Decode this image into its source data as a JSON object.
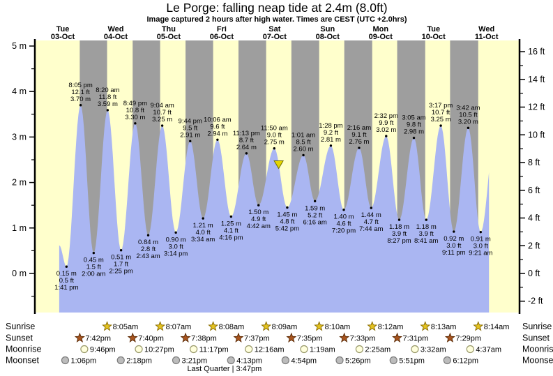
{
  "chart_data": {
    "type": "area",
    "title": "Le Porge: falling  neap tide at 2.4m (8.0ft)",
    "subtitle": "Image captured 2 hours after high water. Times are CEST (UTC +2.0hrs)",
    "legend_position": "none",
    "grid": false,
    "x_axis": {
      "unit": "days",
      "labels_position": "top"
    },
    "y_axis_left": {
      "unit": "m",
      "ticks": [
        0,
        1,
        2,
        3,
        4,
        5
      ],
      "tick_suffix": " m",
      "minor_step": 0.5
    },
    "y_axis_right": {
      "unit": "ft",
      "ticks": [
        -2,
        0,
        2,
        4,
        6,
        8,
        10,
        12,
        14,
        16
      ],
      "tick_suffix": " ft",
      "minor_step": 1
    },
    "ylim_m": [
      -0.86,
      5.12
    ],
    "days": [
      {
        "name": "Tue",
        "date": "03-Oct",
        "day": 3
      },
      {
        "name": "Wed",
        "date": "04-Oct",
        "day": 4
      },
      {
        "name": "Thu",
        "date": "05-Oct",
        "day": 5
      },
      {
        "name": "Fri",
        "date": "06-Oct",
        "day": 6
      },
      {
        "name": "Sat",
        "date": "07-Oct",
        "day": 7
      },
      {
        "name": "Sun",
        "date": "08-Oct",
        "day": 8
      },
      {
        "name": "Mon",
        "date": "09-Oct",
        "day": 9
      },
      {
        "name": "Tue",
        "date": "10-Oct",
        "day": 10
      },
      {
        "name": "Wed",
        "date": "11-Oct",
        "day": 11
      }
    ],
    "tide_events": [
      {
        "day": 3,
        "type": "low",
        "time": "1:41 pm",
        "t": 13.683,
        "m": 0.15,
        "m_label": "0.15 m",
        "ft_label": "0.5 ft"
      },
      {
        "day": 3,
        "type": "high",
        "time": "8:05 pm",
        "t": 20.083,
        "m": 3.7,
        "m_label": "3.70 m",
        "ft_label": "12.1 ft"
      },
      {
        "day": 4,
        "type": "low",
        "time": "2:00 am",
        "t": 2.0,
        "m": 0.45,
        "m_label": "0.45 m",
        "ft_label": "1.5 ft"
      },
      {
        "day": 4,
        "type": "high",
        "time": "8:20 am",
        "t": 8.333,
        "m": 3.59,
        "m_label": "3.59 m",
        "ft_label": "11.8 ft"
      },
      {
        "day": 4,
        "type": "low",
        "time": "2:25 pm",
        "t": 14.417,
        "m": 0.51,
        "m_label": "0.51 m",
        "ft_label": "1.7 ft"
      },
      {
        "day": 4,
        "type": "high",
        "time": "8:49 pm",
        "t": 20.817,
        "m": 3.3,
        "m_label": "3.30 m",
        "ft_label": "10.8 ft"
      },
      {
        "day": 5,
        "type": "low",
        "time": "2:43 am",
        "t": 2.717,
        "m": 0.84,
        "m_label": "0.84 m",
        "ft_label": "2.8 ft"
      },
      {
        "day": 5,
        "type": "high",
        "time": "9:04 am",
        "t": 9.067,
        "m": 3.25,
        "m_label": "3.25 m",
        "ft_label": "10.7 ft"
      },
      {
        "day": 5,
        "type": "low",
        "time": "3:14 pm",
        "t": 15.233,
        "m": 0.9,
        "m_label": "0.90 m",
        "ft_label": "3.0 ft"
      },
      {
        "day": 5,
        "type": "high",
        "time": "9:44 pm",
        "t": 21.733,
        "m": 2.91,
        "m_label": "2.91 m",
        "ft_label": "9.5 ft"
      },
      {
        "day": 6,
        "type": "low",
        "time": "3:34 am",
        "t": 3.567,
        "m": 1.21,
        "m_label": "1.21 m",
        "ft_label": "4.0 ft"
      },
      {
        "day": 6,
        "type": "high",
        "time": "10:06 am",
        "t": 10.1,
        "m": 2.94,
        "m_label": "2.94 m",
        "ft_label": "9.6 ft"
      },
      {
        "day": 6,
        "type": "low",
        "time": "4:16 pm",
        "t": 16.267,
        "m": 1.25,
        "m_label": "1.25 m",
        "ft_label": "4.1 ft"
      },
      {
        "day": 6,
        "type": "high",
        "time": "11:13 pm",
        "t": 23.217,
        "m": 2.64,
        "m_label": "2.64 m",
        "ft_label": "8.7 ft"
      },
      {
        "day": 7,
        "type": "low",
        "time": "4:42 am",
        "t": 4.7,
        "m": 1.5,
        "m_label": "1.50 m",
        "ft_label": "4.9 ft"
      },
      {
        "day": 7,
        "type": "high",
        "time": "11:50 am",
        "t": 11.833,
        "m": 2.75,
        "m_label": "2.75 m",
        "ft_label": "9.0 ft"
      },
      {
        "day": 7,
        "type": "low",
        "time": "5:42 pm",
        "t": 17.7,
        "m": 1.45,
        "m_label": "1.45 m",
        "ft_label": "4.8 ft"
      },
      {
        "day": 8,
        "type": "high",
        "time": "1:01 am",
        "t": 1.017,
        "m": 2.6,
        "m_label": "2.60 m",
        "ft_label": "8.5 ft"
      },
      {
        "day": 8,
        "type": "low",
        "time": "6:16 am",
        "t": 6.267,
        "m": 1.59,
        "m_label": "1.59 m",
        "ft_label": "5.2 ft"
      },
      {
        "day": 8,
        "type": "high",
        "time": "1:28 pm",
        "t": 13.467,
        "m": 2.81,
        "m_label": "2.81 m",
        "ft_label": "9.2 ft"
      },
      {
        "day": 8,
        "type": "low",
        "time": "7:20 pm",
        "t": 19.333,
        "m": 1.4,
        "m_label": "1.40 m",
        "ft_label": "4.6 ft"
      },
      {
        "day": 9,
        "type": "high",
        "time": "2:16 am",
        "t": 2.267,
        "m": 2.76,
        "m_label": "2.76 m",
        "ft_label": "9.1 ft"
      },
      {
        "day": 9,
        "type": "low",
        "time": "7:44 am",
        "t": 7.733,
        "m": 1.44,
        "m_label": "1.44 m",
        "ft_label": "4.7 ft"
      },
      {
        "day": 9,
        "type": "high",
        "time": "2:32 pm",
        "t": 14.533,
        "m": 3.02,
        "m_label": "3.02 m",
        "ft_label": "9.9 ft"
      },
      {
        "day": 9,
        "type": "low",
        "time": "8:27 pm",
        "t": 20.45,
        "m": 1.18,
        "m_label": "1.18 m",
        "ft_label": "3.9 ft"
      },
      {
        "day": 10,
        "type": "high",
        "time": "3:05 am",
        "t": 3.083,
        "m": 2.98,
        "m_label": "2.98 m",
        "ft_label": "9.8 ft"
      },
      {
        "day": 10,
        "type": "low",
        "time": "8:41 am",
        "t": 8.683,
        "m": 1.18,
        "m_label": "1.18 m",
        "ft_label": "3.9 ft"
      },
      {
        "day": 10,
        "type": "high",
        "time": "3:17 pm",
        "t": 15.283,
        "m": 3.25,
        "m_label": "3.25 m",
        "ft_label": "10.7 ft"
      },
      {
        "day": 10,
        "type": "low",
        "time": "9:11 pm",
        "t": 21.183,
        "m": 0.92,
        "m_label": "0.92 m",
        "ft_label": "3.0 ft"
      },
      {
        "day": 11,
        "type": "high",
        "time": "3:42 am",
        "t": 3.7,
        "m": 3.2,
        "m_label": "3.20 m",
        "ft_label": "10.5 ft"
      },
      {
        "day": 11,
        "type": "low",
        "time": "9:21 am",
        "t": 9.35,
        "m": 0.91,
        "m_label": "0.91 m",
        "ft_label": "3.0 ft"
      }
    ],
    "curve_edge_start": {
      "day": 3,
      "t": 10.4,
      "m": 0.62
    },
    "curve_edge_end": {
      "day": 11,
      "t": 16.2,
      "m": 3.2,
      "cut_day": 11,
      "cut_t": 13.1
    },
    "capture_marker": {
      "day": 7,
      "t": 13.83,
      "m": 2.4
    },
    "astro": {
      "row_labels": [
        "Sunrise",
        "Sunset",
        "Moonrise",
        "Moonset"
      ],
      "sunrise": [
        {
          "day": 4,
          "time": "8:05am",
          "t": 8.083
        },
        {
          "day": 5,
          "time": "8:07am",
          "t": 8.117
        },
        {
          "day": 6,
          "time": "8:08am",
          "t": 8.133
        },
        {
          "day": 7,
          "time": "8:09am",
          "t": 8.15
        },
        {
          "day": 8,
          "time": "8:10am",
          "t": 8.167
        },
        {
          "day": 9,
          "time": "8:12am",
          "t": 8.2
        },
        {
          "day": 10,
          "time": "8:13am",
          "t": 8.217
        },
        {
          "day": 11,
          "time": "8:14am",
          "t": 8.233
        }
      ],
      "sunset": [
        {
          "day": 3,
          "time": "7:42pm",
          "t": 19.7
        },
        {
          "day": 4,
          "time": "7:40pm",
          "t": 19.667
        },
        {
          "day": 5,
          "time": "7:38pm",
          "t": 19.633
        },
        {
          "day": 6,
          "time": "7:37pm",
          "t": 19.617
        },
        {
          "day": 7,
          "time": "7:35pm",
          "t": 19.583
        },
        {
          "day": 8,
          "time": "7:33pm",
          "t": 19.55
        },
        {
          "day": 9,
          "time": "7:31pm",
          "t": 19.517
        },
        {
          "day": 10,
          "time": "7:29pm",
          "t": 19.483
        }
      ],
      "moonrise": [
        {
          "day": 3,
          "time": "9:46pm",
          "t": 21.767
        },
        {
          "day": 4,
          "time": "10:27pm",
          "t": 22.45
        },
        {
          "day": 5,
          "time": "11:17pm",
          "t": 23.283
        },
        {
          "day": 7,
          "time": "12:16am",
          "t": 0.267
        },
        {
          "day": 8,
          "time": "1:19am",
          "t": 1.317
        },
        {
          "day": 9,
          "time": "2:25am",
          "t": 2.417
        },
        {
          "day": 10,
          "time": "3:32am",
          "t": 3.533
        },
        {
          "day": 11,
          "time": "4:37am",
          "t": 4.617
        }
      ],
      "moonset": [
        {
          "day": 3,
          "time": "1:06pm",
          "t": 13.1
        },
        {
          "day": 4,
          "time": "2:18pm",
          "t": 14.3
        },
        {
          "day": 5,
          "time": "3:21pm",
          "t": 15.35
        },
        {
          "day": 6,
          "time": "4:13pm",
          "t": 16.217
        },
        {
          "day": 7,
          "time": "4:54pm",
          "t": 16.9
        },
        {
          "day": 8,
          "time": "5:26pm",
          "t": 17.433
        },
        {
          "day": 9,
          "time": "5:51pm",
          "t": 17.85
        },
        {
          "day": 10,
          "time": "6:12pm",
          "t": 18.2
        }
      ],
      "moon_phase": {
        "label": "Last Quarter | 3:47pm",
        "day": 6,
        "t": 15.783
      }
    },
    "colors": {
      "background": "#ffffff",
      "day_band": "#ffffcc",
      "night_band": "#9e9e9e",
      "tide_fill": "#aab6f2",
      "date_label": "#e93323",
      "axis": "#000000",
      "tide_label_text": "#111111",
      "marker_fill": "#e3d400",
      "marker_stroke": "#6b6b00",
      "sunrise_star_fill": "#e3c220",
      "sunrise_star_stroke": "#8a6d00",
      "sunset_star_fill": "#a8541e",
      "sunset_star_stroke": "#5e2d08",
      "moonrise_fill": "#ffffdd",
      "moonrise_stroke": "#99996a",
      "moonset_fill": "#bcbcbc",
      "moonset_stroke": "#7c7c7c"
    }
  }
}
